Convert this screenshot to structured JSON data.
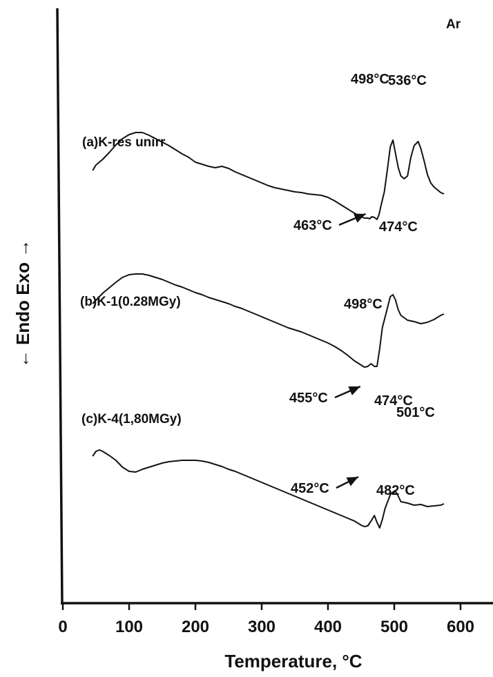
{
  "chart_data": {
    "type": "line",
    "title": "",
    "xlabel": "Temperature, °C",
    "ylabel": "← Endo Exo →",
    "atmosphere_label": "Ar",
    "xlim": [
      0,
      650
    ],
    "xticks": [
      0,
      100,
      200,
      300,
      400,
      500,
      600
    ],
    "grid": false,
    "legend": "none",
    "series": [
      {
        "name": "(a)K-res unirr",
        "x": [
          45,
          50,
          60,
          70,
          80,
          90,
          100,
          110,
          120,
          130,
          140,
          150,
          160,
          170,
          180,
          190,
          200,
          210,
          220,
          230,
          240,
          250,
          260,
          270,
          280,
          290,
          300,
          310,
          320,
          330,
          340,
          350,
          360,
          370,
          380,
          390,
          400,
          410,
          420,
          430,
          440,
          450,
          455,
          460,
          463,
          466,
          470,
          474,
          477,
          480,
          485,
          490,
          494,
          498,
          502,
          506,
          510,
          515,
          520,
          525,
          530,
          536,
          540,
          545,
          550,
          555,
          560,
          565,
          570,
          575
        ],
        "y": [
          36,
          44,
          52,
          62,
          73,
          82,
          88,
          91,
          91,
          87,
          82,
          77,
          72,
          66,
          60,
          55,
          48,
          45,
          42,
          40,
          42,
          39,
          34,
          30,
          26,
          22,
          18,
          14,
          11,
          9,
          7,
          5,
          4,
          2,
          1,
          0,
          -3,
          -8,
          -14,
          -20,
          -26,
          -31,
          -33,
          -33,
          -34,
          -31,
          -32,
          -35,
          -28,
          -15,
          5,
          40,
          70,
          80,
          60,
          40,
          28,
          24,
          28,
          55,
          72,
          78,
          68,
          50,
          30,
          18,
          12,
          8,
          4,
          2
        ]
      },
      {
        "name": "(b)K-1(0.28MGy)",
        "x": [
          45,
          50,
          60,
          70,
          80,
          90,
          100,
          110,
          120,
          130,
          140,
          150,
          160,
          170,
          180,
          190,
          200,
          210,
          220,
          230,
          240,
          250,
          260,
          270,
          280,
          290,
          300,
          310,
          320,
          330,
          340,
          350,
          360,
          370,
          380,
          390,
          400,
          410,
          420,
          430,
          440,
          450,
          455,
          460,
          465,
          470,
          474,
          478,
          482,
          486,
          490,
          494,
          498,
          502,
          506,
          510,
          520,
          530,
          540,
          550,
          560,
          570,
          575
        ],
        "y": [
          -35,
          -30,
          -20,
          -12,
          -4,
          3,
          7,
          8,
          8,
          6,
          3,
          0,
          -4,
          -8,
          -11,
          -15,
          -19,
          -22,
          -26,
          -29,
          -32,
          -35,
          -39,
          -42,
          -46,
          -50,
          -54,
          -58,
          -62,
          -66,
          -70,
          -73,
          -76,
          -80,
          -84,
          -88,
          -92,
          -97,
          -103,
          -110,
          -118,
          -124,
          -127,
          -126,
          -122,
          -126,
          -126,
          -100,
          -70,
          -55,
          -40,
          -25,
          -22,
          -30,
          -44,
          -52,
          -59,
          -61,
          -64,
          -62,
          -58,
          -52,
          -50
        ]
      },
      {
        "name": "(c)K-4(1,80MGy)",
        "x": [
          45,
          50,
          55,
          60,
          70,
          80,
          90,
          100,
          110,
          120,
          130,
          140,
          150,
          160,
          170,
          180,
          190,
          200,
          210,
          220,
          230,
          240,
          250,
          260,
          270,
          280,
          290,
          300,
          310,
          320,
          330,
          340,
          350,
          360,
          370,
          380,
          390,
          400,
          410,
          420,
          430,
          440,
          450,
          455,
          460,
          465,
          470,
          474,
          478,
          482,
          486,
          490,
          494,
          498,
          501,
          505,
          510,
          520,
          530,
          540,
          550,
          560,
          570,
          575
        ],
        "y": [
          -174,
          -167,
          -165,
          -167,
          -173,
          -180,
          -190,
          -196,
          -197,
          -193,
          -190,
          -187,
          -184,
          -182,
          -181,
          -180,
          -180,
          -180,
          -181,
          -183,
          -186,
          -189,
          -193,
          -196,
          -200,
          -204,
          -208,
          -212,
          -216,
          -220,
          -224,
          -228,
          -232,
          -236,
          -240,
          -244,
          -248,
          -252,
          -256,
          -260,
          -264,
          -268,
          -274,
          -276,
          -275,
          -268,
          -260,
          -270,
          -278,
          -266,
          -250,
          -240,
          -230,
          -226,
          -224,
          -230,
          -240,
          -242,
          -245,
          -244,
          -247,
          -246,
          -245,
          -243
        ]
      }
    ],
    "annotations": [
      {
        "text": "498°C",
        "series": 0,
        "x": 498
      },
      {
        "text": "536°C",
        "series": 0,
        "x": 536
      },
      {
        "text": "463°C",
        "series": 0,
        "x": 463,
        "arrow": true
      },
      {
        "text": "474°C",
        "series": 0,
        "x": 474
      },
      {
        "text": "498°C",
        "series": 1,
        "x": 498
      },
      {
        "text": "455°C",
        "series": 1,
        "x": 455,
        "arrow": true
      },
      {
        "text": "474°C",
        "series": 1,
        "x": 474
      },
      {
        "text": "501°C",
        "series": 2,
        "x": 501
      },
      {
        "text": "452°C",
        "series": 2,
        "x": 452,
        "arrow": true
      },
      {
        "text": "482°C",
        "series": 2,
        "x": 482
      }
    ]
  }
}
